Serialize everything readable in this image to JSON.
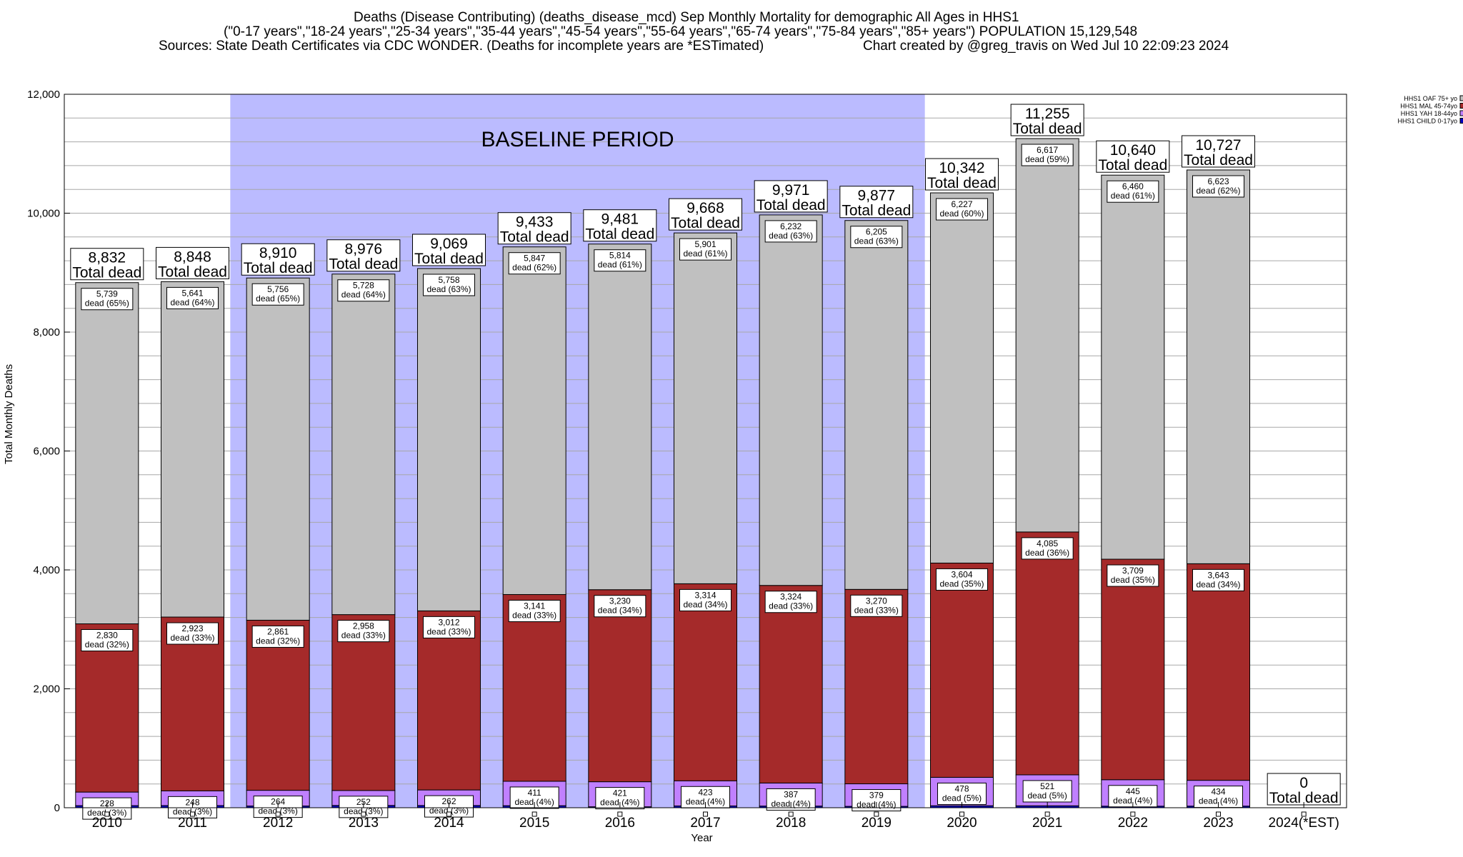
{
  "header": {
    "line1": "Deaths (Disease Contributing) (deaths_disease_mcd) Sep Monthly Mortality for demographic All Ages in HHS1",
    "line2": "(\"0-17 years\",\"18-24 years\",\"25-34 years\",\"35-44 years\",\"45-54 years\",\"55-64 years\",\"65-74 years\",\"75-84 years\",\"85+ years\") POPULATION 15,129,548",
    "line3": "Sources: State Death Certificates via CDC WONDER. (Deaths for incomplete years are *ESTimated)",
    "credit": "Chart created by @greg_travis on Wed Jul 10 22:09:23 2024"
  },
  "colors": {
    "oaf": "#c0c0c0",
    "mal": "#a52a2a",
    "yah": "#c080ff",
    "child": "#0000c0",
    "baseline": "#bbbbff"
  },
  "chart_data": {
    "type": "bar",
    "stacked": true,
    "xlabel": "Year",
    "ylabel": "Total Monthly Deaths",
    "ylim": [
      0,
      12000
    ],
    "yticks": [
      "0",
      "2,000",
      "4,000",
      "6,000",
      "8,000",
      "10,000",
      "12,000"
    ],
    "grid": true,
    "legend_position": "top-right",
    "annotation": "BASELINE PERIOD",
    "baseline_range": [
      "2012",
      "2019"
    ],
    "categories": [
      "2010",
      "2011",
      "2012",
      "2013",
      "2014",
      "2015",
      "2016",
      "2017",
      "2018",
      "2019",
      "2020",
      "2021",
      "2022",
      "2023",
      "2024(*EST)"
    ],
    "series": [
      {
        "name": "HHS1 CHILD 0-17yo",
        "values": [
          35,
          36,
          29,
          38,
          37,
          34,
          16,
          30,
          28,
          23,
          33,
          32,
          26,
          27,
          0
        ]
      },
      {
        "name": "HHS1 YAH 18-44yo",
        "values": [
          228,
          248,
          264,
          252,
          262,
          411,
          421,
          423,
          387,
          379,
          478,
          521,
          445,
          434,
          0
        ]
      },
      {
        "name": "HHS1 MAL 45-74yo",
        "values": [
          2830,
          2923,
          2861,
          2958,
          3012,
          3141,
          3230,
          3314,
          3324,
          3270,
          3604,
          4085,
          3709,
          3643,
          0
        ]
      },
      {
        "name": "HHS1 OAF 75+ yo",
        "values": [
          5739,
          5641,
          5756,
          5728,
          5758,
          5847,
          5814,
          5901,
          6232,
          6205,
          6227,
          6617,
          6460,
          6623,
          0
        ]
      }
    ],
    "totals": [
      "8,832",
      "8,848",
      "8,910",
      "8,976",
      "9,069",
      "9,433",
      "9,481",
      "9,668",
      "9,971",
      "9,877",
      "10,342",
      "11,255",
      "10,640",
      "10,727",
      "0"
    ],
    "total_suffix": "Total dead",
    "labels": {
      "oaf": [
        "5,739",
        "5,641",
        "5,756",
        "5,728",
        "5,758",
        "5,847",
        "5,814",
        "5,901",
        "6,232",
        "6,205",
        "6,227",
        "6,617",
        "6,460",
        "6,623",
        ""
      ],
      "oaf_pct": [
        "dead (65%)",
        "dead (64%)",
        "dead (65%)",
        "dead (64%)",
        "dead (63%)",
        "dead (62%)",
        "dead (61%)",
        "dead (61%)",
        "dead (63%)",
        "dead (63%)",
        "dead (60%)",
        "dead (59%)",
        "dead (61%)",
        "dead (62%)",
        ""
      ],
      "mal": [
        "2,830",
        "2,923",
        "2,861",
        "2,958",
        "3,012",
        "3,141",
        "3,230",
        "3,314",
        "3,324",
        "3,270",
        "3,604",
        "4,085",
        "3,709",
        "3,643",
        ""
      ],
      "mal_pct": [
        "dead (32%)",
        "dead (33%)",
        "dead (32%)",
        "dead (33%)",
        "dead (33%)",
        "dead (33%)",
        "dead (34%)",
        "dead (34%)",
        "dead (33%)",
        "dead (33%)",
        "dead (35%)",
        "dead (36%)",
        "dead (35%)",
        "dead (34%)",
        ""
      ],
      "yah": [
        "228",
        "248",
        "264",
        "252",
        "262",
        "411",
        "421",
        "423",
        "387",
        "379",
        "478",
        "521",
        "445",
        "434",
        ""
      ],
      "yah_pct": [
        "dead (3%)",
        "dead (3%)",
        "dead (3%)",
        "dead (3%)",
        "dead (3%)",
        "dead (4%)",
        "dead (4%)",
        "dead (4%)",
        "dead (4%)",
        "dead (4%)",
        "dead (5%)",
        "dead (5%)",
        "dead (4%)",
        "dead (4%)",
        ""
      ]
    }
  }
}
